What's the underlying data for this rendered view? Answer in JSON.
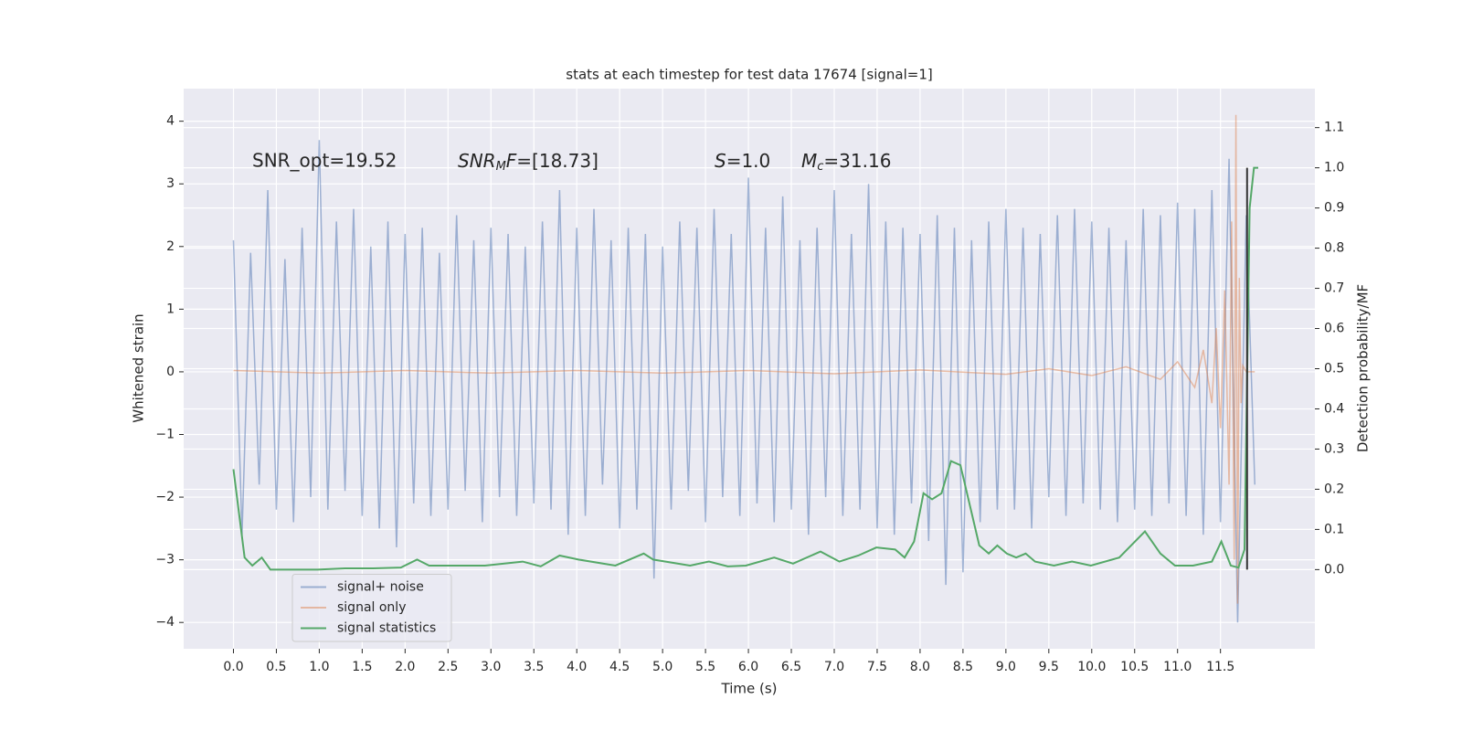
{
  "chart_data": {
    "type": "line",
    "title": "stats at each timestep for test data 17674 [signal=1]",
    "x_label": "Time (s)",
    "y_label": "Whitened strain",
    "y2_label": "Detection probability/MF",
    "annotations": [
      {
        "text": "SNR_opt=19.52"
      },
      {
        "italic": "SNR",
        "sub": "M",
        "italic2": "F",
        "text": "=[18.73]"
      },
      {
        "italic": "S",
        "text": "=1.0"
      },
      {
        "italic": "M",
        "sub": "c",
        "text": "=31.16"
      }
    ],
    "xlim": [
      -0.58,
      12.6
    ],
    "ylim": [
      -4.42,
      4.52
    ],
    "y2lim": [
      -0.197,
      1.197
    ],
    "xticks": [
      {
        "value": 0,
        "label": "0.0"
      },
      {
        "value": 0.5,
        "label": "0.5"
      },
      {
        "value": 1,
        "label": "1.0"
      },
      {
        "value": 1.5,
        "label": "1.5"
      },
      {
        "value": 2,
        "label": "2.0"
      },
      {
        "value": 2.5,
        "label": "2.5"
      },
      {
        "value": 3,
        "label": "3.0"
      },
      {
        "value": 3.5,
        "label": "3.5"
      },
      {
        "value": 4,
        "label": "4.0"
      },
      {
        "value": 4.5,
        "label": "4.5"
      },
      {
        "value": 5,
        "label": "5.0"
      },
      {
        "value": 5.5,
        "label": "5.5"
      },
      {
        "value": 6,
        "label": "6.0"
      },
      {
        "value": 6.5,
        "label": "6.5"
      },
      {
        "value": 7,
        "label": "7.0"
      },
      {
        "value": 7.5,
        "label": "7.5"
      },
      {
        "value": 8,
        "label": "8.0"
      },
      {
        "value": 8.5,
        "label": "8.5"
      },
      {
        "value": 9,
        "label": "9.0"
      },
      {
        "value": 9.5,
        "label": "9.5"
      },
      {
        "value": 10,
        "label": "10.0"
      },
      {
        "value": 10.5,
        "label": "10.5"
      },
      {
        "value": 11,
        "label": "11.0"
      },
      {
        "value": 11.5,
        "label": "11.5"
      }
    ],
    "yticks": [
      {
        "value": -4,
        "label": "−4"
      },
      {
        "value": -3,
        "label": "−3"
      },
      {
        "value": -2,
        "label": "−2"
      },
      {
        "value": -1,
        "label": "−1"
      },
      0,
      1,
      2,
      3,
      4
    ],
    "y2ticks": [
      {
        "value": 0,
        "label": "0.0"
      },
      {
        "value": 0.1,
        "label": "0.1"
      },
      {
        "value": 0.2,
        "label": "0.2"
      },
      {
        "value": 0.3,
        "label": "0.3"
      },
      {
        "value": 0.4,
        "label": "0.4"
      },
      {
        "value": 0.5,
        "label": "0.5"
      },
      {
        "value": 0.6,
        "label": "0.6"
      },
      {
        "value": 0.7,
        "label": "0.7"
      },
      {
        "value": 0.8,
        "label": "0.8"
      },
      {
        "value": 0.9,
        "label": "0.9"
      },
      {
        "value": 1,
        "label": "1.0"
      },
      {
        "value": 1.1,
        "label": "1.1"
      }
    ],
    "grid": true,
    "legend_loc": "lower left",
    "series": [
      {
        "name": "signal+ noise",
        "color": "#4c72b0",
        "x": [
          0,
          0.1,
          0.2,
          0.3,
          0.4,
          0.5,
          0.6,
          0.7,
          0.8,
          0.9,
          1,
          1.1,
          1.2,
          1.3,
          1.4,
          1.5,
          1.6,
          1.7,
          1.8,
          1.9,
          2,
          2.1,
          2.2,
          2.3,
          2.4,
          2.5,
          2.6,
          2.7,
          2.8,
          2.9,
          3,
          3.1,
          3.2,
          3.3,
          3.4,
          3.5,
          3.6,
          3.7,
          3.8,
          3.9,
          4,
          4.1,
          4.2,
          4.3,
          4.4,
          4.5,
          4.6,
          4.7,
          4.8,
          4.9,
          5,
          5.1,
          5.2,
          5.3,
          5.4,
          5.5,
          5.6,
          5.7,
          5.8,
          5.9,
          6,
          6.1,
          6.2,
          6.3,
          6.4,
          6.5,
          6.6,
          6.7,
          6.8,
          6.9,
          7,
          7.1,
          7.2,
          7.3,
          7.4,
          7.5,
          7.6,
          7.7,
          7.8,
          7.9,
          8,
          8.1,
          8.2,
          8.3,
          8.4,
          8.5,
          8.6,
          8.7,
          8.8,
          8.9,
          9,
          9.1,
          9.2,
          9.3,
          9.4,
          9.5,
          9.6,
          9.7,
          9.8,
          9.9,
          10,
          10.1,
          10.2,
          10.3,
          10.4,
          10.5,
          10.6,
          10.7,
          10.8,
          10.9,
          11,
          11.1,
          11.2,
          11.3,
          11.4,
          11.5,
          11.6,
          11.7,
          11.8,
          11.9
        ],
        "values": [
          2.1,
          -2.6,
          1.9,
          -1.8,
          2.9,
          -2.2,
          1.8,
          -2.4,
          2.3,
          -2.0,
          3.7,
          -2.2,
          2.4,
          -1.9,
          2.6,
          -2.3,
          2.0,
          -2.5,
          2.4,
          -2.8,
          2.2,
          -2.1,
          2.3,
          -2.3,
          1.9,
          -2.2,
          2.5,
          -1.9,
          2.1,
          -2.4,
          2.3,
          -2.0,
          2.2,
          -2.3,
          2.0,
          -2.1,
          2.4,
          -2.2,
          2.9,
          -2.6,
          2.3,
          -2.3,
          2.6,
          -1.8,
          2.1,
          -2.5,
          2.3,
          -2.2,
          2.2,
          -3.3,
          2.0,
          -2.2,
          2.4,
          -1.9,
          2.3,
          -2.4,
          2.6,
          -2.0,
          2.2,
          -2.3,
          3.1,
          -2.1,
          2.3,
          -2.4,
          2.8,
          -2.2,
          2.1,
          -2.6,
          2.3,
          -2.0,
          2.9,
          -2.3,
          2.2,
          -2.2,
          3.0,
          -2.5,
          2.4,
          -2.6,
          2.3,
          -2.1,
          2.2,
          -2.7,
          2.5,
          -3.4,
          2.3,
          -3.2,
          2.1,
          -2.4,
          2.4,
          -2.2,
          2.6,
          -2.2,
          2.3,
          -2.5,
          2.2,
          -2.0,
          2.5,
          -2.3,
          2.6,
          -2.1,
          2.4,
          -2.2,
          2.3,
          -2.4,
          2.1,
          -2.2,
          2.6,
          -2.3,
          2.5,
          -2.1,
          2.7,
          -2.3,
          2.6,
          -2.6,
          2.9,
          -2.4,
          3.4,
          -4.0,
          2.5,
          -1.8
        ]
      },
      {
        "name": "signal only",
        "color": "#dd8452",
        "x": [
          0,
          1,
          2,
          3,
          4,
          5,
          6,
          7,
          8,
          9,
          9.5,
          10,
          10.4,
          10.8,
          11,
          11.2,
          11.3,
          11.4,
          11.45,
          11.5,
          11.55,
          11.6,
          11.63,
          11.66,
          11.68,
          11.7,
          11.72,
          11.74,
          11.76,
          11.8,
          11.9
        ],
        "values": [
          0.02,
          -0.02,
          0.02,
          -0.02,
          0.02,
          -0.02,
          0.02,
          -0.03,
          0.03,
          -0.04,
          0.05,
          -0.06,
          0.08,
          -0.12,
          0.16,
          -0.25,
          0.35,
          -0.5,
          0.7,
          -0.9,
          1.3,
          -1.8,
          2.4,
          -3.0,
          4.1,
          -3.7,
          1.5,
          -0.5,
          0.1,
          0.0,
          0.0
        ]
      },
      {
        "name": "signal statistics",
        "color": "#55a868",
        "axis": "y2",
        "x": [
          0,
          0.13,
          0.22,
          0.33,
          0.43,
          0.98,
          1.3,
          1.63,
          1.95,
          2.14,
          2.28,
          2.93,
          3.37,
          3.58,
          3.8,
          4.02,
          4.45,
          4.78,
          4.89,
          5.32,
          5.54,
          5.76,
          5.97,
          6.3,
          6.52,
          6.84,
          7.06,
          7.28,
          7.49,
          7.71,
          7.82,
          7.93,
          8.04,
          8.14,
          8.25,
          8.36,
          8.47,
          8.58,
          8.69,
          8.8,
          8.9,
          9.01,
          9.12,
          9.23,
          9.34,
          9.56,
          9.77,
          9.99,
          10.32,
          10.62,
          10.8,
          10.97,
          11.18,
          11.4,
          11.51,
          11.62,
          11.71,
          11.78,
          11.84,
          11.89,
          11.94
        ],
        "values": [
          0.25,
          0.03,
          0.01,
          0.03,
          0.0,
          0.0,
          0.003,
          0.003,
          0.005,
          0.025,
          0.01,
          0.01,
          0.02,
          0.008,
          0.035,
          0.025,
          0.01,
          0.04,
          0.025,
          0.01,
          0.02,
          0.008,
          0.01,
          0.03,
          0.015,
          0.045,
          0.02,
          0.035,
          0.055,
          0.05,
          0.03,
          0.07,
          0.19,
          0.175,
          0.19,
          0.27,
          0.26,
          0.16,
          0.06,
          0.04,
          0.06,
          0.04,
          0.03,
          0.04,
          0.02,
          0.01,
          0.02,
          0.01,
          0.03,
          0.095,
          0.04,
          0.01,
          0.01,
          0.02,
          0.07,
          0.01,
          0.005,
          0.05,
          0.9,
          1.0,
          1.0
        ]
      }
    ],
    "vline": {
      "x": 11.81,
      "y2": [
        0.0,
        1.0
      ],
      "color": "#333333"
    }
  }
}
